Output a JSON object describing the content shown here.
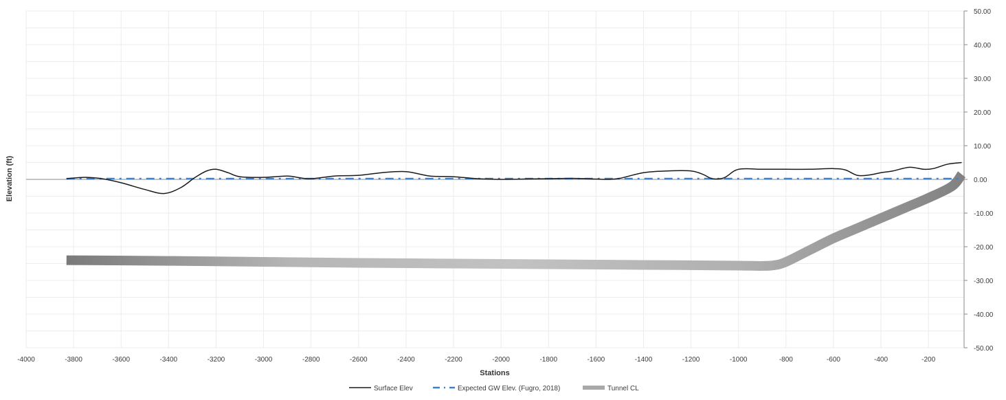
{
  "chart_data": {
    "type": "line",
    "title": "",
    "xlabel": "Stations",
    "ylabel": "Elevation (ft)",
    "xlim": [
      -4000,
      -50
    ],
    "ylim": [
      -50,
      50
    ],
    "x_ticks": [
      -4000,
      -3800,
      -3600,
      -3400,
      -3200,
      -3000,
      -2800,
      -2600,
      -2400,
      -2200,
      -2000,
      -1800,
      -1600,
      -1400,
      -1200,
      -1000,
      -800,
      -600,
      -400,
      -200
    ],
    "x_tick_labels": [
      "-4000",
      "-3800",
      "-3600",
      "-3400",
      "-3200",
      "-3000",
      "-2800",
      "-2600",
      "-2400",
      "-2200",
      "-2000",
      "-1800",
      "-1600",
      "-1400",
      "-1200",
      "-1000",
      "-800",
      "-600",
      "-400",
      "-200"
    ],
    "y_ticks": [
      50,
      40,
      30,
      20,
      10,
      0,
      -10,
      -20,
      -30,
      -40,
      -50
    ],
    "y_tick_labels": [
      "50.00",
      "40.00",
      "30.00",
      "20.00",
      "10.00",
      "0.00",
      "-10.00",
      "-20.00",
      "-30.00",
      "-40.00",
      "-50.00"
    ],
    "y_axis_side": "right",
    "grid": true,
    "legend_position": "bottom",
    "series": [
      {
        "name": "Surface Elev",
        "color": "#1a1a1a",
        "style": "solid",
        "x": [
          -3830,
          -3750,
          -3680,
          -3600,
          -3500,
          -3420,
          -3350,
          -3290,
          -3240,
          -3200,
          -3150,
          -3100,
          -3000,
          -2900,
          -2850,
          -2800,
          -2700,
          -2600,
          -2500,
          -2400,
          -2300,
          -2200,
          -2100,
          -2000,
          -1900,
          -1800,
          -1700,
          -1600,
          -1550,
          -1500,
          -1400,
          -1300,
          -1200,
          -1150,
          -1110,
          -1060,
          -1000,
          -900,
          -800,
          -700,
          -600,
          -550,
          -500,
          -450,
          -400,
          -350,
          -280,
          -220,
          -180,
          -120,
          -60
        ],
        "y": [
          0.2,
          0.6,
          0.2,
          -1.0,
          -3.0,
          -4.2,
          -2.5,
          0.5,
          2.5,
          3.0,
          2.0,
          0.8,
          0.6,
          1.0,
          0.5,
          0.2,
          1.0,
          1.2,
          2.0,
          2.3,
          1.0,
          0.8,
          0.2,
          0.0,
          0.1,
          0.2,
          0.3,
          0.1,
          0.0,
          0.3,
          2.0,
          2.5,
          2.5,
          1.5,
          0.2,
          0.5,
          3.0,
          3.0,
          3.0,
          3.0,
          3.2,
          2.8,
          1.2,
          1.3,
          2.0,
          2.5,
          3.6,
          3.0,
          3.2,
          4.5,
          5.0
        ]
      },
      {
        "name": "Expected GW Elev. (Fugro, 2018)",
        "color": "#3d7fcf",
        "style": "dash-dot",
        "x": [
          -3830,
          -60
        ],
        "y": [
          0.2,
          0.2
        ]
      },
      {
        "name": "Tunnel CL",
        "color": "#a8a8a8",
        "style": "thick",
        "x": [
          -3830,
          -3400,
          -3000,
          -2600,
          -2200,
          -1800,
          -1400,
          -1000,
          -900,
          -850,
          -800,
          -700,
          -600,
          -500,
          -400,
          -300,
          -200,
          -100,
          -60
        ],
        "y": [
          -24.0,
          -24.2,
          -24.5,
          -24.8,
          -25.0,
          -25.2,
          -25.4,
          -25.6,
          -25.7,
          -25.5,
          -24.5,
          -21.0,
          -17.5,
          -14.5,
          -11.5,
          -8.5,
          -5.5,
          -2.0,
          1.5
        ]
      }
    ]
  }
}
